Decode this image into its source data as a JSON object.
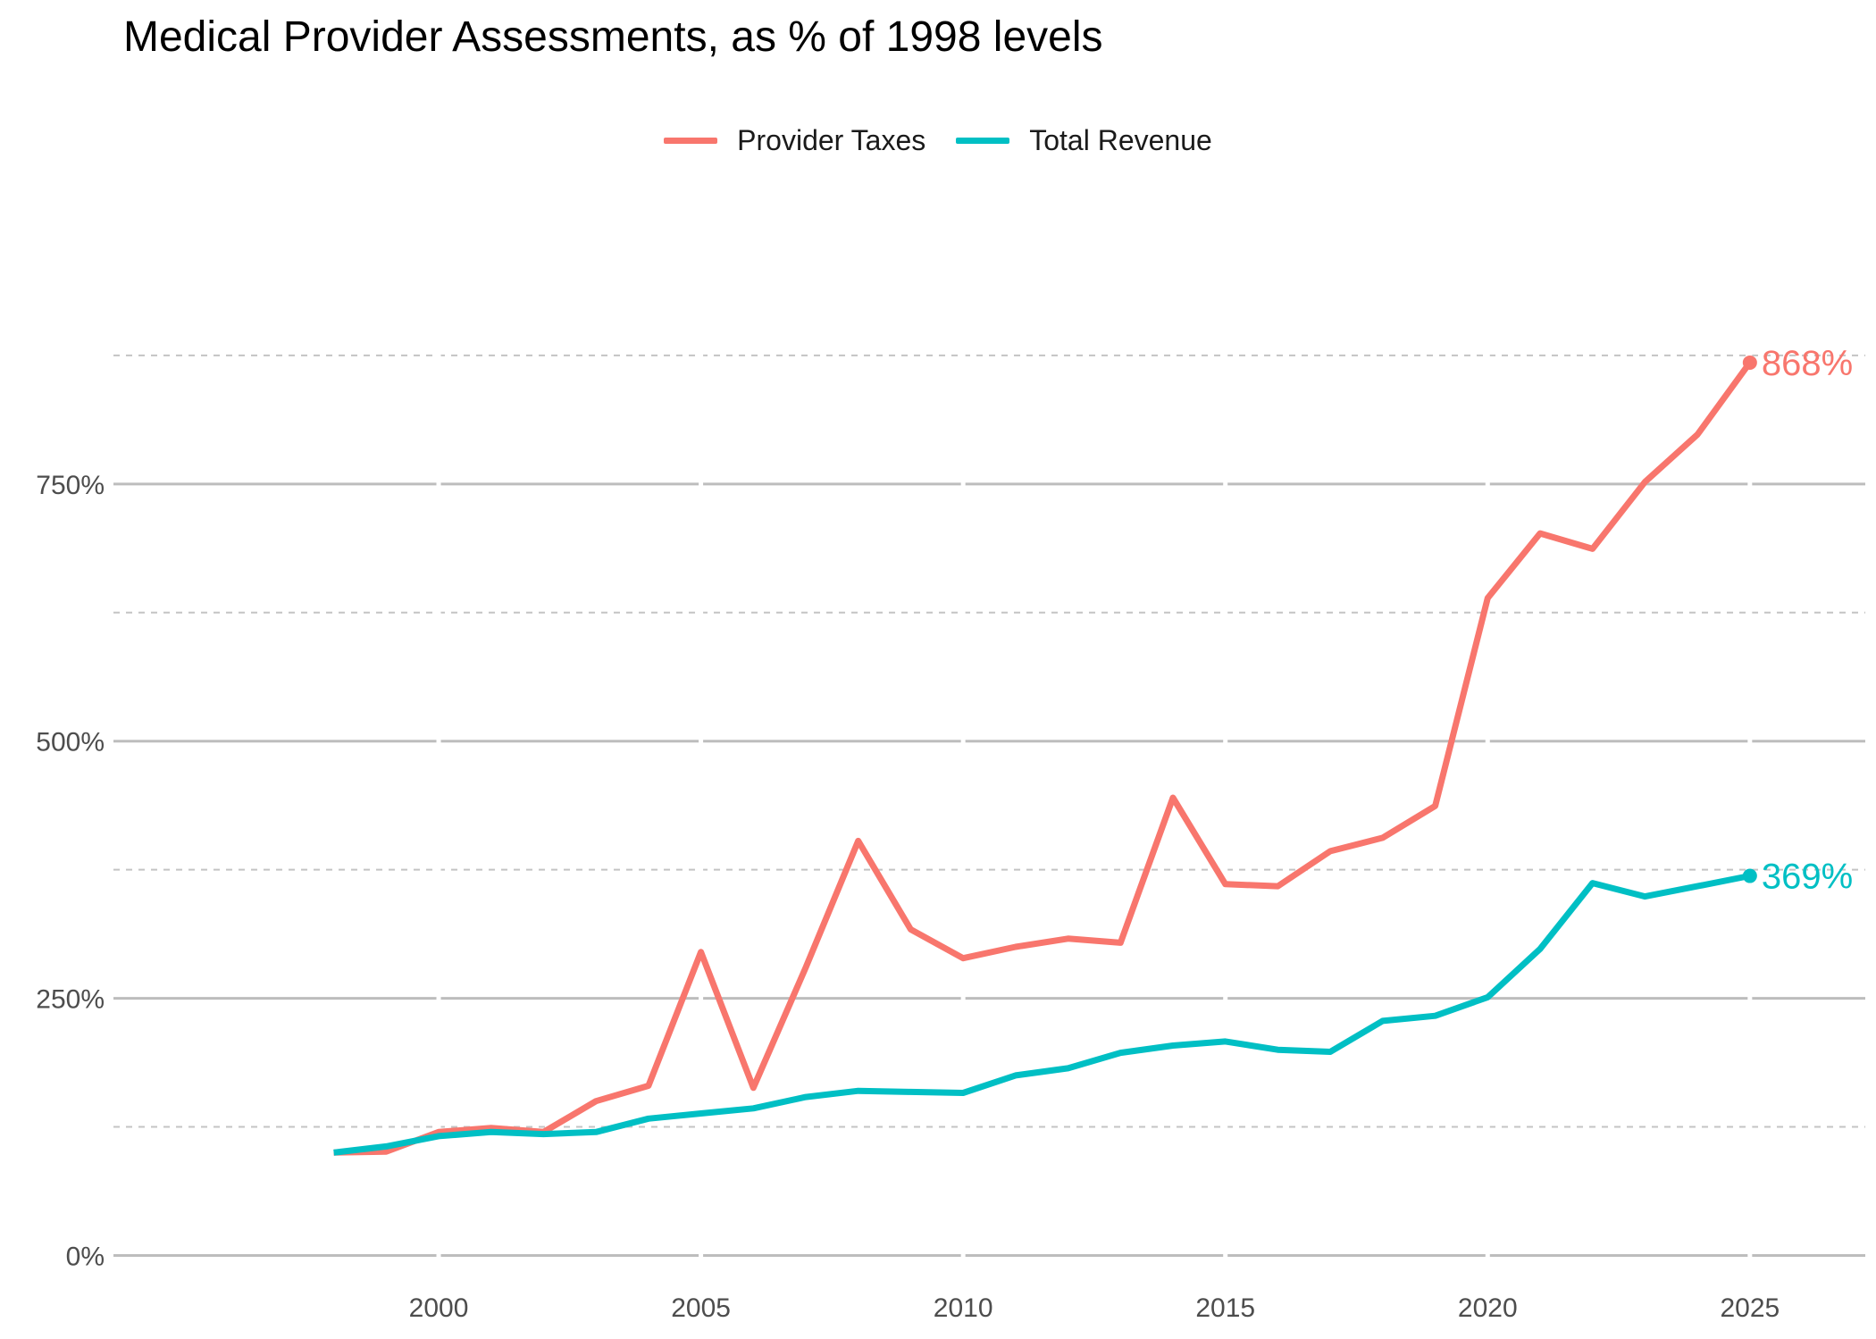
{
  "chart_data": {
    "type": "line",
    "title": "Medical Provider Assessments, as % of 1998 levels",
    "xlabel": "",
    "ylabel": "",
    "x": [
      1998,
      1999,
      2000,
      2001,
      2002,
      2003,
      2004,
      2005,
      2006,
      2007,
      2008,
      2009,
      2010,
      2011,
      2012,
      2013,
      2014,
      2015,
      2016,
      2017,
      2018,
      2019,
      2020,
      2021,
      2022,
      2023,
      2024,
      2025
    ],
    "series": [
      {
        "name": "Provider Taxes",
        "color": "#F8766D",
        "values": [
          100,
          101,
          120,
          124,
          120,
          150,
          165,
          295,
          163,
          280,
          403,
          317,
          289,
          300,
          308,
          304,
          445,
          361,
          359,
          393,
          406,
          437,
          639,
          702,
          687,
          752,
          798,
          868
        ]
      },
      {
        "name": "Total Revenue",
        "color": "#00BFC4",
        "values": [
          100,
          106,
          116,
          120,
          118,
          120,
          133,
          138,
          143,
          154,
          160,
          159,
          158,
          175,
          182,
          197,
          204,
          208,
          200,
          198,
          228,
          233,
          251,
          298,
          362,
          349,
          359,
          369
        ]
      }
    ],
    "end_labels": [
      "868%",
      "369%"
    ],
    "xticks": [
      2000,
      2005,
      2010,
      2015,
      2020,
      2025
    ],
    "xtick_labels": [
      "2000",
      "2005",
      "2010",
      "2015",
      "2020",
      "2025"
    ],
    "yticks": [
      0,
      250,
      500,
      750
    ],
    "ytick_labels": [
      "0%",
      "250%",
      "500%",
      "750%"
    ],
    "yminor": [
      125,
      375,
      625,
      875
    ],
    "xlim": [
      1993.8,
      2027.2
    ],
    "ylim": [
      -30,
      960
    ],
    "grid": true,
    "legend_position": "top"
  }
}
